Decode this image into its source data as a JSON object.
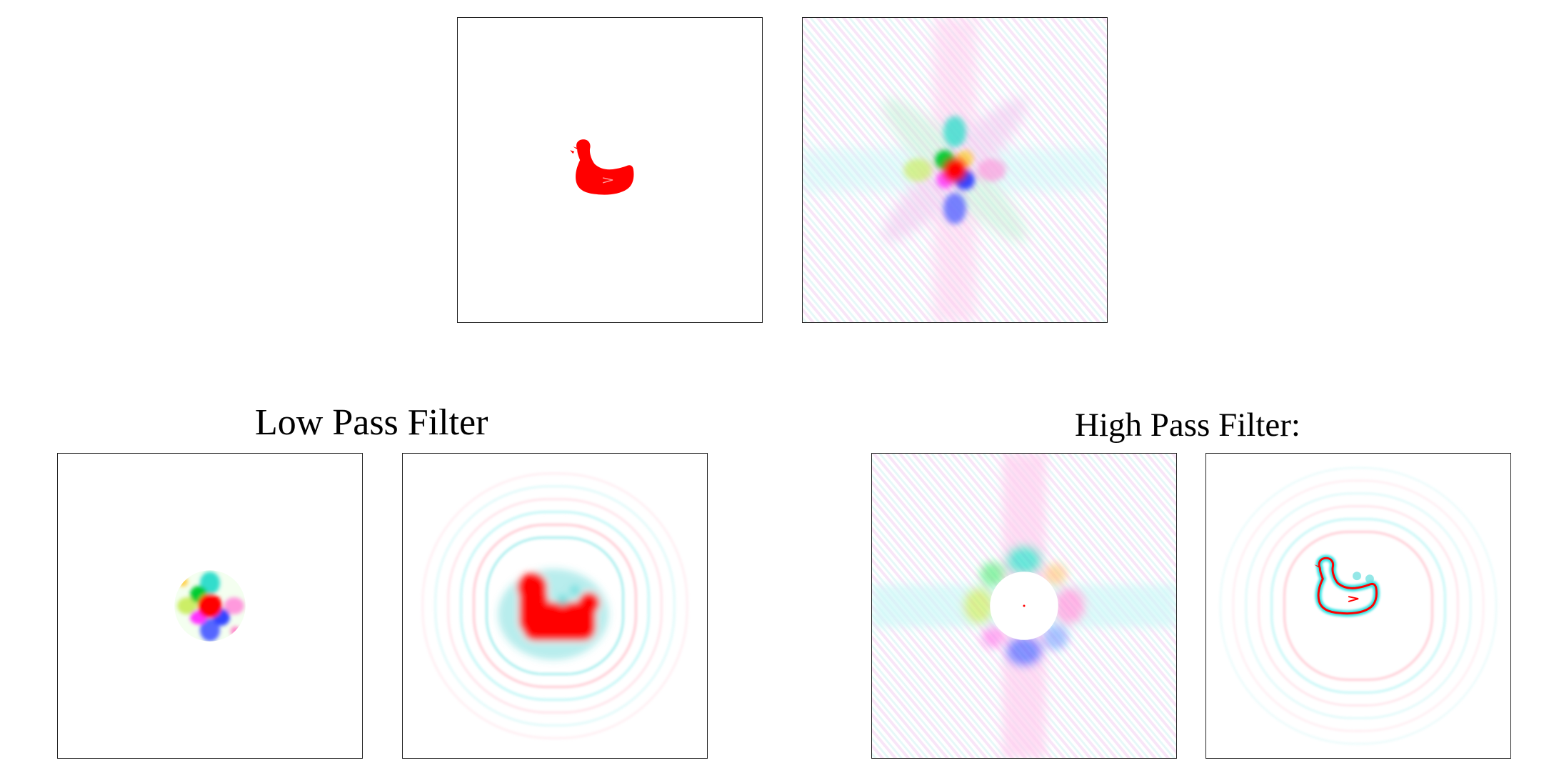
{
  "sections": {
    "low_pass": {
      "title": "Low Pass Filter"
    },
    "high_pass": {
      "title": "High Pass Filter:"
    }
  },
  "colors": {
    "shape": "#ff0000",
    "fringe_cyan": "#00e5e5",
    "fringe_green": "#00cc33",
    "fringe_blue": "#3344ff",
    "fringe_magenta": "#ff33ff",
    "frame": "#222222",
    "background": "#ffffff"
  },
  "panels": [
    {
      "name": "original-image",
      "content": "red duck silhouette"
    },
    {
      "name": "frequency-spectrum",
      "content": "multicolor Fourier spectrum"
    },
    {
      "name": "low-pass-spectrum",
      "content": "central disk of spectrum kept"
    },
    {
      "name": "low-pass-result",
      "content": "blurred red duck with ringing"
    },
    {
      "name": "high-pass-spectrum",
      "content": "spectrum with central disk removed"
    },
    {
      "name": "high-pass-result",
      "content": "duck outline with ringing"
    }
  ]
}
